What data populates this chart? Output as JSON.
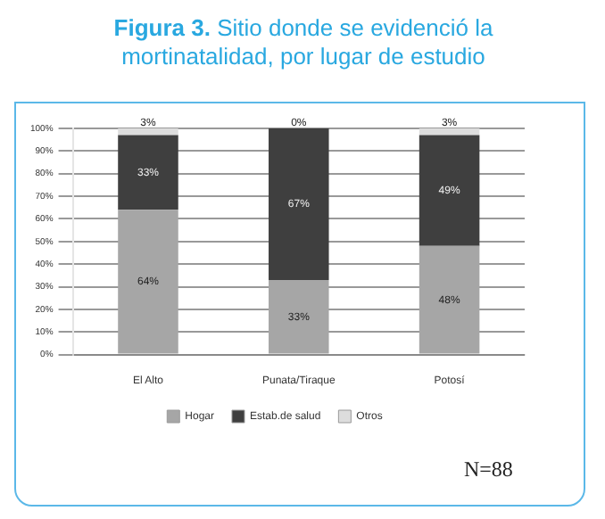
{
  "chart_data": {
    "type": "bar",
    "stacked": true,
    "title": "Figura 3. Sitio donde se evidenció la mortinatalidad, por lugar de estudio",
    "categories": [
      "El Alto",
      "Punata/Tiraque",
      "Potosí"
    ],
    "series": [
      {
        "name": "Hogar",
        "color": "#a6a6a6",
        "values": [
          64,
          33,
          48
        ],
        "value_labels": [
          "64%",
          "33%",
          "48%"
        ]
      },
      {
        "name": "Estab.de salud",
        "color": "#3f3f3f",
        "values": [
          33,
          67,
          49
        ],
        "value_labels": [
          "33%",
          "67%",
          "49%"
        ]
      },
      {
        "name": "Otros",
        "color": "#dddddd",
        "values": [
          3,
          0,
          3
        ],
        "value_labels": [
          "3%",
          "0%",
          "3%"
        ]
      }
    ],
    "ylim": [
      0,
      100
    ],
    "yticks": [
      {
        "value": 0,
        "label": "0%"
      },
      {
        "value": 10,
        "label": "10%"
      },
      {
        "value": 20,
        "label": "20%"
      },
      {
        "value": 30,
        "label": "30%"
      },
      {
        "value": 40,
        "label": "40%"
      },
      {
        "value": 50,
        "label": "50%"
      },
      {
        "value": 60,
        "label": "60%"
      },
      {
        "value": 70,
        "label": "70%"
      },
      {
        "value": 80,
        "label": "80%"
      },
      {
        "value": 90,
        "label": "90%"
      },
      {
        "value": 100,
        "label": "100%"
      }
    ],
    "grid": "y",
    "legend": "bottom",
    "annotations": [
      "N=88"
    ]
  }
}
